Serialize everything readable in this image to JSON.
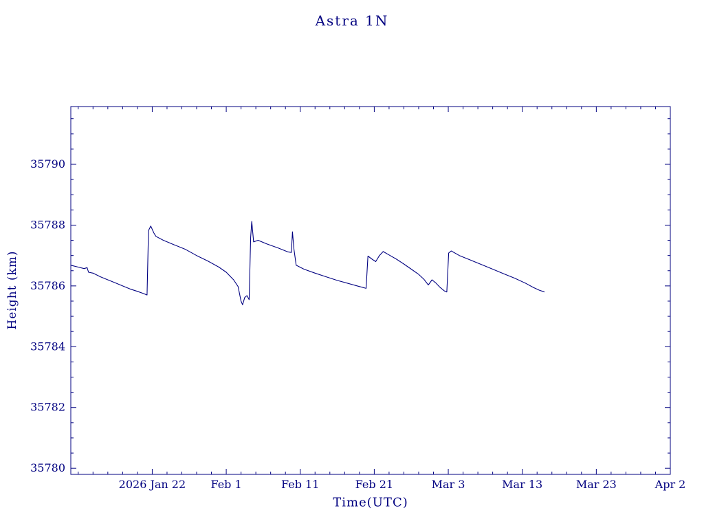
{
  "chart_data": {
    "type": "line",
    "title": "Astra 1N",
    "xlabel": "Time(UTC)",
    "ylabel": "Height (km)",
    "accent_color": "#000080",
    "line_color": "#000080",
    "background_color": "#ffffff",
    "x_unit_note": "days along visible time axis; day 11 = 2026 Jan 22, 10-day tick spacing",
    "xlim": [
      0,
      81
    ],
    "ylim": [
      35779.8,
      35791.9
    ],
    "x_ticks": {
      "positions": [
        11,
        21,
        31,
        41,
        51,
        61,
        71,
        81
      ],
      "labels": [
        "2026 Jan 22",
        "Feb 1",
        "Feb 11",
        "Feb 21",
        "Mar 3",
        "Mar 13",
        "Mar 23",
        "Apr 2"
      ]
    },
    "x_minor_step": 2,
    "y_ticks": {
      "positions": [
        35780,
        35782,
        35784,
        35786,
        35788,
        35790
      ],
      "labels": [
        "35780",
        "35782",
        "35784",
        "35786",
        "35788",
        "35790"
      ]
    },
    "y_minor_step": 0.5,
    "grid": false,
    "legend": "none",
    "series": [
      {
        "name": "height-km",
        "points": [
          [
            0.0,
            35786.68
          ],
          [
            1.0,
            35786.62
          ],
          [
            1.8,
            35786.57
          ],
          [
            2.2,
            35786.6
          ],
          [
            2.4,
            35786.45
          ],
          [
            3.0,
            35786.42
          ],
          [
            4.0,
            35786.3
          ],
          [
            5.0,
            35786.2
          ],
          [
            6.0,
            35786.1
          ],
          [
            7.0,
            35786.0
          ],
          [
            8.0,
            35785.9
          ],
          [
            9.0,
            35785.82
          ],
          [
            9.8,
            35785.75
          ],
          [
            10.3,
            35785.7
          ],
          [
            10.5,
            35787.82
          ],
          [
            10.8,
            35787.97
          ],
          [
            11.2,
            35787.75
          ],
          [
            11.5,
            35787.63
          ],
          [
            12.5,
            35787.5
          ],
          [
            14.0,
            35787.35
          ],
          [
            15.5,
            35787.2
          ],
          [
            17.0,
            35787.0
          ],
          [
            18.5,
            35786.82
          ],
          [
            20.0,
            35786.62
          ],
          [
            21.0,
            35786.45
          ],
          [
            22.0,
            35786.2
          ],
          [
            22.6,
            35785.98
          ],
          [
            23.0,
            35785.5
          ],
          [
            23.2,
            35785.38
          ],
          [
            23.5,
            35785.62
          ],
          [
            23.8,
            35785.68
          ],
          [
            24.1,
            35785.55
          ],
          [
            24.3,
            35787.6
          ],
          [
            24.45,
            35788.12
          ],
          [
            24.7,
            35787.45
          ],
          [
            25.3,
            35787.5
          ],
          [
            26.5,
            35787.38
          ],
          [
            28.0,
            35787.25
          ],
          [
            29.3,
            35787.12
          ],
          [
            29.8,
            35787.1
          ],
          [
            29.95,
            35787.78
          ],
          [
            30.15,
            35787.2
          ],
          [
            30.45,
            35786.68
          ],
          [
            31.5,
            35786.55
          ],
          [
            33.0,
            35786.42
          ],
          [
            34.5,
            35786.3
          ],
          [
            36.0,
            35786.18
          ],
          [
            37.5,
            35786.08
          ],
          [
            39.0,
            35785.98
          ],
          [
            39.9,
            35785.92
          ],
          [
            40.15,
            35786.98
          ],
          [
            40.7,
            35786.88
          ],
          [
            41.2,
            35786.8
          ],
          [
            41.7,
            35787.0
          ],
          [
            42.2,
            35787.13
          ],
          [
            43.0,
            35787.02
          ],
          [
            44.0,
            35786.88
          ],
          [
            45.0,
            35786.72
          ],
          [
            46.0,
            35786.55
          ],
          [
            47.0,
            35786.38
          ],
          [
            47.7,
            35786.22
          ],
          [
            48.3,
            35786.03
          ],
          [
            48.8,
            35786.2
          ],
          [
            49.3,
            35786.1
          ],
          [
            49.9,
            35785.95
          ],
          [
            50.5,
            35785.83
          ],
          [
            50.8,
            35785.8
          ],
          [
            51.05,
            35787.08
          ],
          [
            51.4,
            35787.15
          ],
          [
            52.5,
            35787.0
          ],
          [
            54.0,
            35786.85
          ],
          [
            55.5,
            35786.7
          ],
          [
            57.0,
            35786.55
          ],
          [
            58.5,
            35786.4
          ],
          [
            60.0,
            35786.25
          ],
          [
            61.5,
            35786.08
          ],
          [
            62.5,
            35785.95
          ],
          [
            63.3,
            35785.86
          ],
          [
            64.0,
            35785.8
          ]
        ]
      }
    ]
  }
}
